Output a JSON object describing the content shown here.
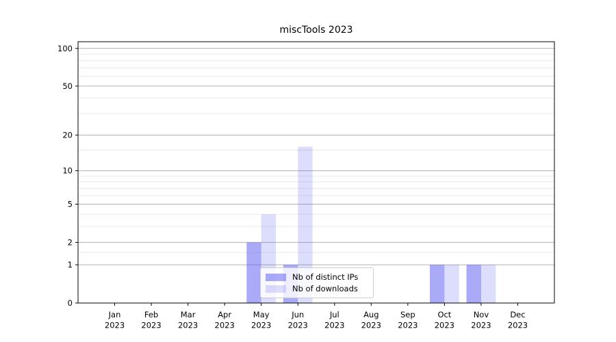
{
  "chart_data": {
    "type": "bar",
    "title": "miscTools 2023",
    "categories": [
      "Jan 2023",
      "Feb 2023",
      "Mar 2023",
      "Apr 2023",
      "May 2023",
      "Jun 2023",
      "Jul 2023",
      "Aug 2023",
      "Sep 2023",
      "Oct 2023",
      "Nov 2023",
      "Dec 2023"
    ],
    "series": [
      {
        "name": "Nb of distinct IPs",
        "color": "#5656f2",
        "fill_opacity": 0.5,
        "values": [
          0,
          0,
          0,
          0,
          2,
          1,
          0,
          0,
          0,
          1,
          1,
          0
        ]
      },
      {
        "name": "Nb of downloads",
        "color": "#5656f2",
        "fill_opacity": 0.2,
        "values": [
          0,
          0,
          0,
          0,
          4,
          16,
          0,
          0,
          0,
          1,
          1,
          0
        ]
      }
    ],
    "y_axis": {
      "scale": "log1p",
      "major_ticks": [
        0,
        1,
        2,
        5,
        10,
        20,
        50,
        100
      ],
      "minor_ticks": [
        1.5,
        3,
        4,
        6,
        7,
        8,
        9,
        15,
        30,
        40,
        60,
        70,
        80,
        90
      ],
      "ylim": [
        0,
        113
      ]
    },
    "x_axis": {
      "label_line_2": "2023"
    },
    "legend": {
      "position": "lower center",
      "entries": [
        "Nb of distinct IPs",
        "Nb of downloads"
      ]
    },
    "grid": true
  },
  "colors": {
    "major_grid": "#b0b0b0",
    "minor_grid": "#e6e6e6",
    "axis": "#000000",
    "text": "#000000",
    "legend_border": "#cccccc",
    "background": "#ffffff"
  }
}
